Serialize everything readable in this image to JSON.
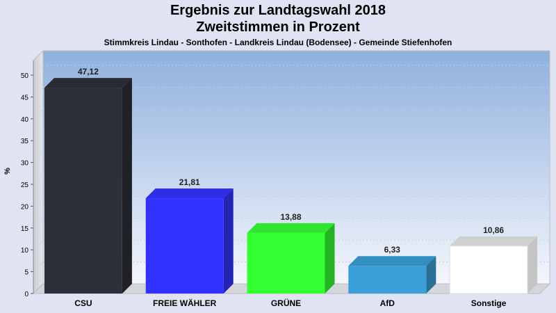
{
  "header": {
    "title_line1": "Ergebnis zur Landtagswahl 2018",
    "title_line2": "Zweitstimmen in Prozent",
    "subtitle": "Stimmkreis Lindau - Sonthofen - Landkreis Lindau (Bodensee) - Gemeinde Stiefenhofen"
  },
  "chart_data": {
    "type": "bar",
    "title": "Ergebnis zur Landtagswahl 2018",
    "subtitle": "Zweitstimmen in Prozent",
    "ylabel": "%",
    "xlabel": "",
    "ylim": [
      0,
      50
    ],
    "yticks": [
      "0",
      "5",
      "10",
      "15",
      "20",
      "25",
      "30",
      "35",
      "40",
      "45",
      "50"
    ],
    "grid": true,
    "categories": [
      "CSU",
      "FREIE WÄHLER",
      "GRÜNE",
      "AfD",
      "Sonstige"
    ],
    "values": [
      47.12,
      21.81,
      13.88,
      6.33,
      10.86
    ],
    "value_labels": [
      "47,12",
      "21,81",
      "13,88",
      "6,33",
      "10,86"
    ],
    "colors": [
      "#2d2f38",
      "#3333ff",
      "#33ff33",
      "#3a9fd6",
      "#ffffff"
    ]
  }
}
